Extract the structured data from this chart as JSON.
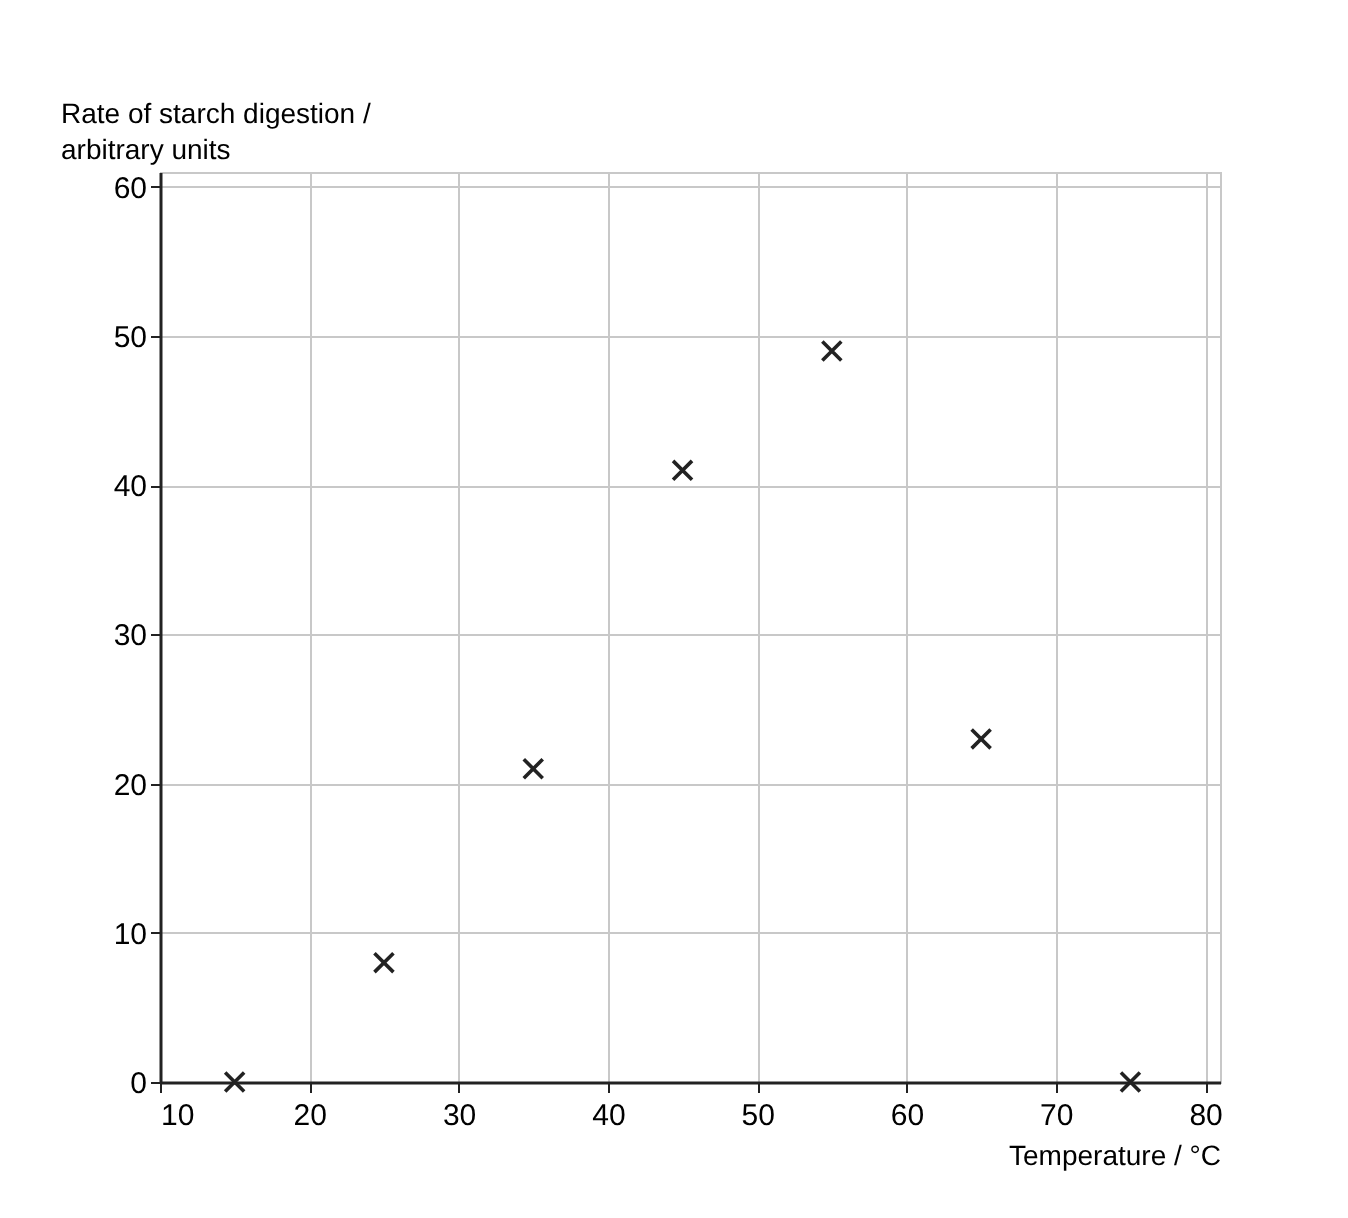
{
  "chart_data": {
    "type": "scatter",
    "xlabel": "Temperature / °C",
    "ylabel": "Rate of starch digestion / arbitrary units",
    "x": [
      15,
      25,
      35,
      45,
      55,
      65,
      75
    ],
    "series": [
      {
        "color": "#222222",
        "values": [
          0,
          8,
          21,
          41,
          49,
          23,
          0
        ]
      }
    ],
    "xlim": [
      10,
      81
    ],
    "ylim": [
      0,
      61
    ],
    "xticks": [
      10,
      20,
      30,
      40,
      50,
      60,
      70,
      80
    ],
    "yticks": [
      0,
      10,
      20,
      30,
      40,
      50,
      60
    ],
    "grid": true,
    "marker": "cross"
  }
}
